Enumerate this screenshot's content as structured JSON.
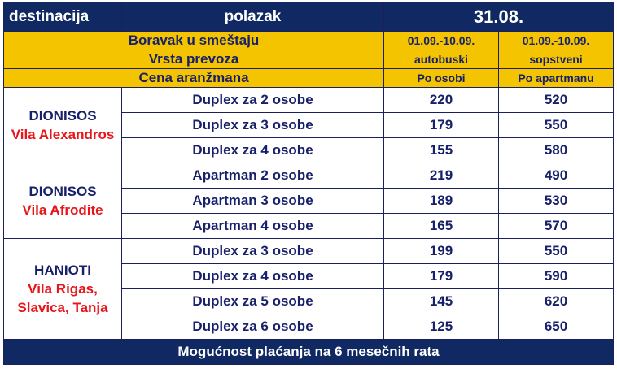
{
  "header": {
    "destination": "destinacija",
    "departure": "polazak",
    "date": "31.08."
  },
  "rows_meta": {
    "stay_label": "Boravak u smeštaju",
    "stay_col1": "01.09.-10.09.",
    "stay_col2": "01.09.-10.09.",
    "transport_label": "Vrsta prevoza",
    "transport_col1": "autobuski",
    "transport_col2": "sopstveni",
    "price_label": "Cena aranžmana",
    "price_col1": "Po osobi",
    "price_col2": "Po apartmanu"
  },
  "groups": [
    {
      "place": "DIONISOS",
      "villa": "Vila Alexandros",
      "rooms": [
        {
          "type": "Duplex za 2 osobe",
          "per_person": "220",
          "per_apartment": "520"
        },
        {
          "type": "Duplex za 3 osobe",
          "per_person": "179",
          "per_apartment": "550"
        },
        {
          "type": "Duplex za 4 osobe",
          "per_person": "155",
          "per_apartment": "580"
        }
      ]
    },
    {
      "place": "DIONISOS",
      "villa": "Vila Afrodite",
      "rooms": [
        {
          "type": "Apartman 2 osobe",
          "per_person": "219",
          "per_apartment": "490"
        },
        {
          "type": "Apartman 3 osobe",
          "per_person": "189",
          "per_apartment": "530"
        },
        {
          "type": "Apartman 4 osobe",
          "per_person": "165",
          "per_apartment": "570"
        }
      ]
    },
    {
      "place": "HANIOTI",
      "villa_line1": "Vila Rigas,",
      "villa_line2": "Slavica, Tanja",
      "rooms": [
        {
          "type": "Duplex za 3 osobe",
          "per_person": "199",
          "per_apartment": "550"
        },
        {
          "type": "Duplex za 4 osobe",
          "per_person": "179",
          "per_apartment": "590"
        },
        {
          "type": "Duplex za 5 osobe",
          "per_person": "145",
          "per_apartment": "620"
        },
        {
          "type": "Duplex za 6 osobe",
          "per_person": "125",
          "per_apartment": "650"
        }
      ]
    }
  ],
  "footer": {
    "note": "Mogućnost plaćanja na 6 mesečnih rata"
  },
  "colors": {
    "header_bg": "#102963",
    "highlight_bg": "#f5c400",
    "text_primary": "#17206a",
    "villa_red": "#e8151b"
  }
}
